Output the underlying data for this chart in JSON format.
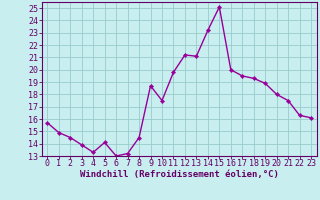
{
  "x": [
    0,
    1,
    2,
    3,
    4,
    5,
    6,
    7,
    8,
    9,
    10,
    11,
    12,
    13,
    14,
    15,
    16,
    17,
    18,
    19,
    20,
    21,
    22,
    23
  ],
  "y": [
    15.7,
    14.9,
    14.5,
    13.9,
    13.3,
    14.1,
    13.0,
    13.2,
    14.5,
    18.7,
    17.5,
    19.8,
    21.2,
    21.1,
    23.2,
    25.1,
    20.0,
    19.5,
    19.3,
    18.9,
    18.0,
    17.5,
    16.3,
    16.1
  ],
  "line_color": "#990099",
  "marker": "D",
  "marker_size": 2.2,
  "background_color": "#c8eef0",
  "grid_color": "#99cccc",
  "xlabel": "Windchill (Refroidissement éolien,°C)",
  "ylabel": "",
  "ylim": [
    13,
    25.5
  ],
  "xlim": [
    -0.5,
    23.5
  ],
  "yticks": [
    13,
    14,
    15,
    16,
    17,
    18,
    19,
    20,
    21,
    22,
    23,
    24,
    25
  ],
  "xticks": [
    0,
    1,
    2,
    3,
    4,
    5,
    6,
    7,
    8,
    9,
    10,
    11,
    12,
    13,
    14,
    15,
    16,
    17,
    18,
    19,
    20,
    21,
    22,
    23
  ],
  "tick_label_color": "#660066",
  "xlabel_color": "#660066",
  "xlabel_fontsize": 6.5,
  "tick_fontsize": 6.0,
  "spine_color": "#660066",
  "linewidth": 1.0
}
